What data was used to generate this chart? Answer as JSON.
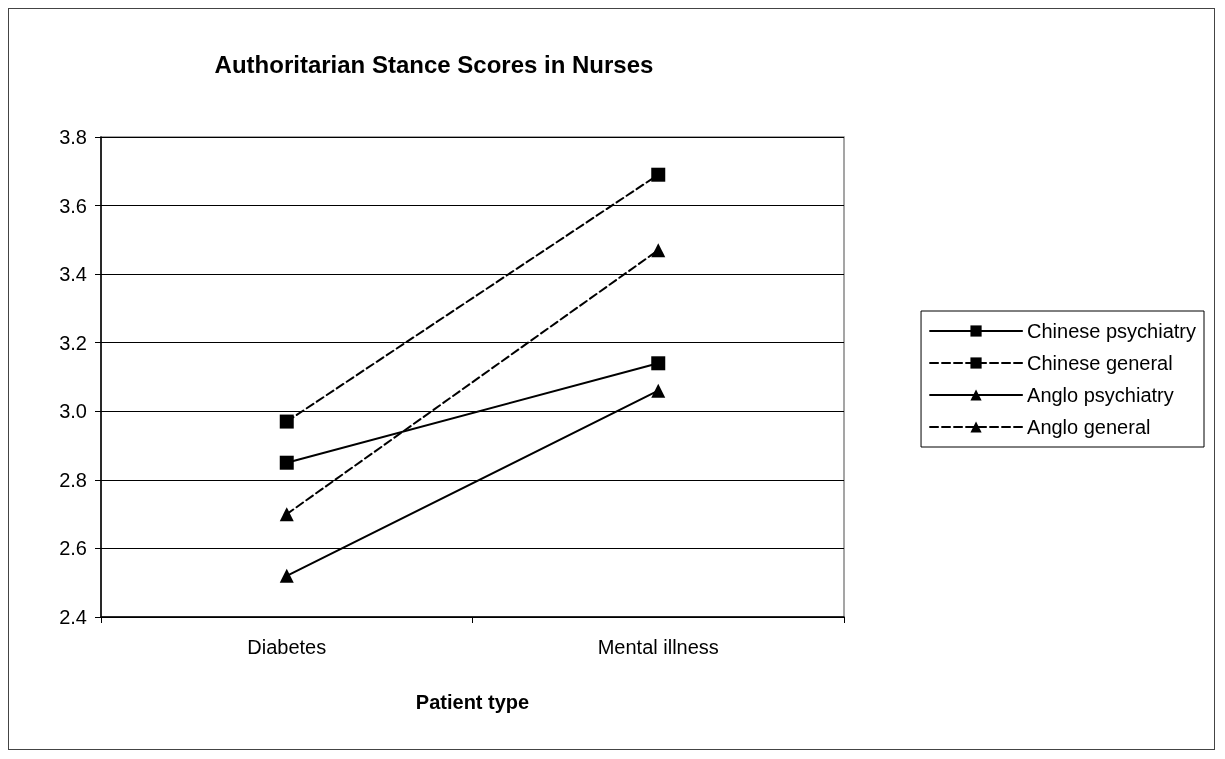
{
  "chart_data": {
    "type": "line",
    "title": "Authoritarian Stance Scores in Nurses",
    "xlabel": "Patient type",
    "categories": [
      "Diabetes",
      "Mental illness"
    ],
    "series": [
      {
        "name": "Chinese psychiatry",
        "color": "#000000",
        "values": [
          2.85,
          3.14
        ],
        "marker": "square",
        "line_style": "solid"
      },
      {
        "name": "Chinese general",
        "color": "#000000",
        "values": [
          2.97,
          3.69
        ],
        "marker": "square",
        "line_style": "dashed"
      },
      {
        "name": "Anglo psychiatry",
        "color": "#000000",
        "values": [
          2.52,
          3.06
        ],
        "marker": "triangle",
        "line_style": "solid"
      },
      {
        "name": "Anglo general",
        "color": "#000000",
        "values": [
          2.7,
          3.47
        ],
        "marker": "triangle",
        "line_style": "dashed"
      }
    ],
    "ylim": [
      2.4,
      3.8
    ],
    "yticks": [
      2.4,
      2.6,
      2.8,
      {
        "value": 3,
        "label": "3.0"
      },
      3.2,
      3.4,
      3.6,
      3.8
    ],
    "grid": "y",
    "legend": "right"
  }
}
